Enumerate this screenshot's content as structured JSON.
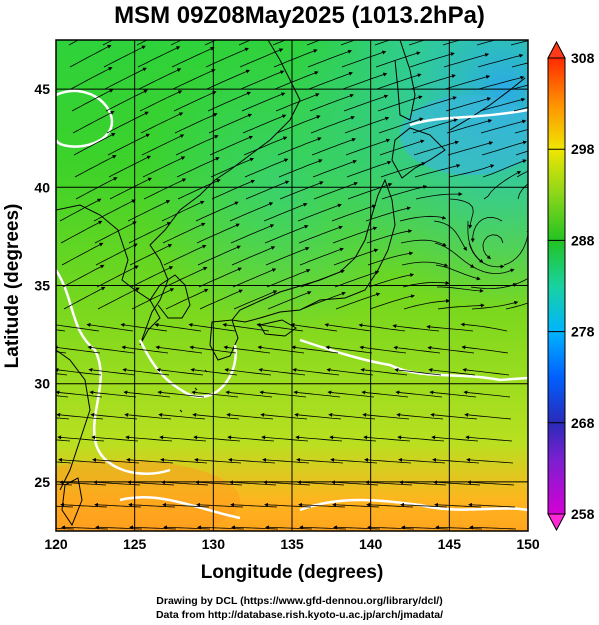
{
  "title": "MSM 09Z08May2025 (1013.2hPa)",
  "map": {
    "x_label": "Longitude (degrees)",
    "y_label": "Latitude  (degrees)",
    "x_ticks": [
      "120",
      "125",
      "130",
      "135",
      "140",
      "145",
      "150"
    ],
    "y_ticks": [
      "25",
      "30",
      "35",
      "40",
      "45"
    ],
    "x_range": [
      120,
      150
    ],
    "y_range": [
      22.5,
      47.5
    ],
    "field": "temperature (K) with wind streamlines, coastlines",
    "gridlines": true
  },
  "colorbar": {
    "labels": [
      "308",
      "298",
      "288",
      "278",
      "268",
      "258"
    ],
    "range": [
      258,
      308
    ],
    "colors": [
      "#d400d4",
      "#2a2ab8",
      "#00b4ff",
      "#18d2a0",
      "#22c322",
      "#8ad61a",
      "#f0e600",
      "#ff9000",
      "#ff2a00"
    ]
  },
  "credits": {
    "line1": "Drawing by DCL (https://www.gfd-dennou.org/library/dcl/)",
    "line2": "Data from http://database.rish.kyoto-u.ac.jp/arch/jmadata/"
  }
}
